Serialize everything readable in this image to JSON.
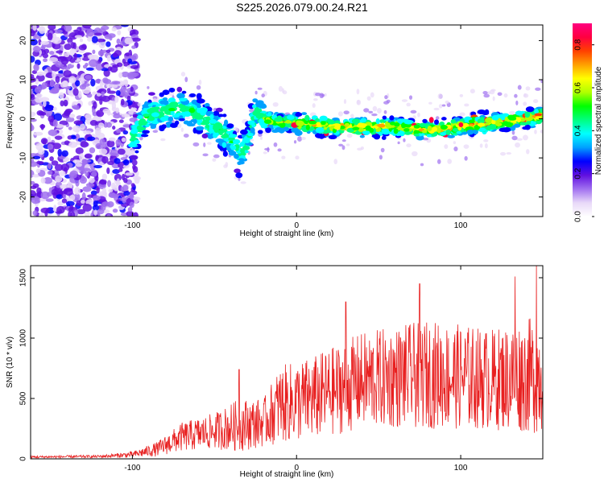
{
  "title": "S225.2026.079.00.24.R21",
  "chart_data": [
    {
      "type": "heatmap",
      "xlabel": "Height of straight line (km)",
      "ylabel": "Frequency (Hz)",
      "xlim": [
        -162,
        150
      ],
      "ylim": [
        -25,
        24
      ],
      "xticks": [
        -100,
        0,
        100
      ],
      "yticks": [
        -20,
        -10,
        0,
        10,
        20
      ],
      "colorbar": {
        "label": "Normalized spectral amplitude",
        "range": [
          0.0,
          0.9
        ],
        "ticks": [
          "0.0",
          "0.2",
          "0.4",
          "0.6",
          "0.8"
        ],
        "colormap": [
          "#ffffff",
          "#e8d8f8",
          "#a070f0",
          "#6010e0",
          "#0000ff",
          "#00a0ff",
          "#00ffff",
          "#00ff80",
          "#00ff00",
          "#b0ff00",
          "#ffff00",
          "#ffa000",
          "#ff4000",
          "#ff0040",
          "#ff0080"
        ]
      },
      "ridge": [
        {
          "x": -100,
          "y": -5
        },
        {
          "x": -90,
          "y": 1
        },
        {
          "x": -80,
          "y": 2
        },
        {
          "x": -70,
          "y": 3
        },
        {
          "x": -60,
          "y": 1
        },
        {
          "x": -50,
          "y": -2
        },
        {
          "x": -40,
          "y": -5
        },
        {
          "x": -35,
          "y": -9
        },
        {
          "x": -30,
          "y": -6
        },
        {
          "x": -25,
          "y": 2
        },
        {
          "x": -20,
          "y": 0
        },
        {
          "x": -10,
          "y": -1
        },
        {
          "x": 0,
          "y": -1
        },
        {
          "x": 20,
          "y": -2
        },
        {
          "x": 40,
          "y": -2
        },
        {
          "x": 60,
          "y": -2
        },
        {
          "x": 80,
          "y": -3
        },
        {
          "x": 100,
          "y": -2
        },
        {
          "x": 120,
          "y": -1
        },
        {
          "x": 140,
          "y": 0
        },
        {
          "x": 150,
          "y": 1
        }
      ]
    },
    {
      "type": "line",
      "xlabel": "Height of straight line (km)",
      "ylabel": "SNR (10 * v/v)",
      "xlim": [
        -162,
        150
      ],
      "ylim": [
        0,
        1600
      ],
      "xticks": [
        -100,
        0,
        100
      ],
      "yticks": [
        0,
        500,
        1000,
        1500
      ],
      "color": "#e82020",
      "envelope": [
        {
          "x": -162,
          "mean": 15,
          "amp": 10
        },
        {
          "x": -120,
          "mean": 20,
          "amp": 12
        },
        {
          "x": -100,
          "mean": 35,
          "amp": 25
        },
        {
          "x": -85,
          "mean": 80,
          "amp": 60
        },
        {
          "x": -70,
          "mean": 180,
          "amp": 120
        },
        {
          "x": -50,
          "mean": 230,
          "amp": 150
        },
        {
          "x": -35,
          "mean": 280,
          "amp": 220
        },
        {
          "x": -20,
          "mean": 300,
          "amp": 200
        },
        {
          "x": -10,
          "mean": 450,
          "amp": 320
        },
        {
          "x": 10,
          "mean": 500,
          "amp": 350
        },
        {
          "x": 40,
          "mean": 650,
          "amp": 400
        },
        {
          "x": 80,
          "mean": 700,
          "amp": 450
        },
        {
          "x": 120,
          "mean": 660,
          "amp": 420
        },
        {
          "x": 150,
          "mean": 700,
          "amp": 500
        }
      ],
      "peaks": [
        {
          "x": -35,
          "y": 740
        },
        {
          "x": 30,
          "y": 1300
        },
        {
          "x": 75,
          "y": 1450
        },
        {
          "x": 133,
          "y": 1510
        },
        {
          "x": 146,
          "y": 1600
        }
      ]
    }
  ]
}
